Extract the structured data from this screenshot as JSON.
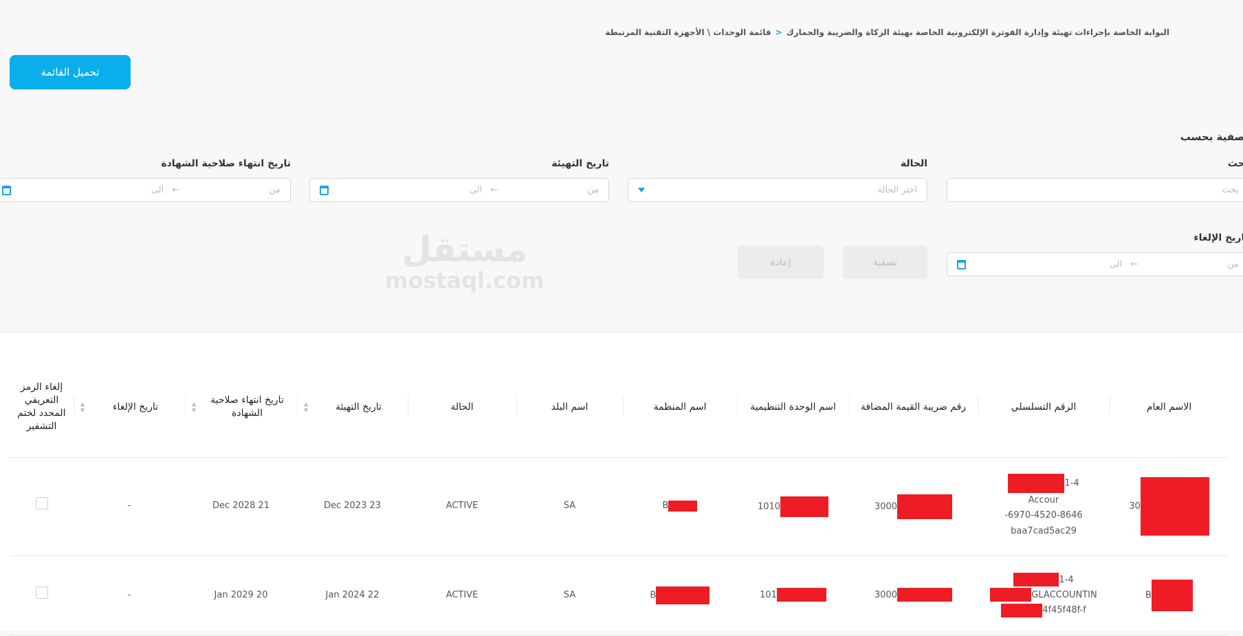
{
  "breadcrumb": {
    "root": "البوابة الخاصة بإجراءات تهيئة وإدارة الفوترة الإلكترونية الخاصة بهيئة الزكاة والضريبة والجمارك",
    "separator": "<",
    "current": "قائمة الوحدات \\ الأجهزة التقنية المرتبطة"
  },
  "actions": {
    "upload_list": "تحميل القائمة"
  },
  "filters": {
    "title": "تصفية بحسب",
    "search": {
      "label": "بحث",
      "placeholder": "بحث"
    },
    "status": {
      "label": "الحالة",
      "placeholder": "اختر الحالة"
    },
    "init_date": {
      "label": "تاريخ التهيئة",
      "from": "من",
      "to": "الى",
      "arrow": "←"
    },
    "cert_expiry": {
      "label": "تاريخ انتهاء صلاحية الشهادة",
      "from": "من",
      "to": "الى",
      "arrow": "←"
    },
    "cancel_date": {
      "label": "تاريخ الإلغاء",
      "from": "من",
      "to": "الى",
      "arrow": "←"
    },
    "filter_button": "تصفية",
    "reset_button": "إعادة"
  },
  "table": {
    "headers": [
      "الاسم العام",
      "الرقم التسلسلي",
      "رقم ضريبة القيمة المضافة",
      "اسم الوحدة التنظيمية",
      "اسم المنظمة",
      "اسم البلد",
      "الحالة",
      "تاريخ التهيئة",
      "تاريخ انتهاء صلاحية الشهادة",
      "تاريخ الإلغاء",
      "إلغاء الرمز التعريفي المحدد لختم التشفير"
    ],
    "rows": [
      {
        "common_name": "30",
        "serial": [
          "1-4",
          "Accour",
          "6970-4520-8646-",
          "baa7cad5ac29"
        ],
        "vat": "3000",
        "unit": "1010",
        "org": "B",
        "country": "SA",
        "status": "ACTIVE",
        "init_date": "Dec 2023 23",
        "expiry": "Dec 2028 21",
        "cancel": "-"
      },
      {
        "common_name": "B",
        "serial": [
          "1-4",
          "GLACCOUNTIN",
          "4f45f48f-f"
        ],
        "vat": "3000",
        "unit": "101",
        "org": "B",
        "country": "SA",
        "status": "ACTIVE",
        "init_date": "Jan 2024 22",
        "expiry": "Jan 2029 20",
        "cancel": "-"
      }
    ]
  },
  "watermark": {
    "arabic": "مستقل",
    "latin": "mostaql.com"
  },
  "colors": {
    "accent": "#09aeea",
    "redaction": "#ee1c25"
  }
}
